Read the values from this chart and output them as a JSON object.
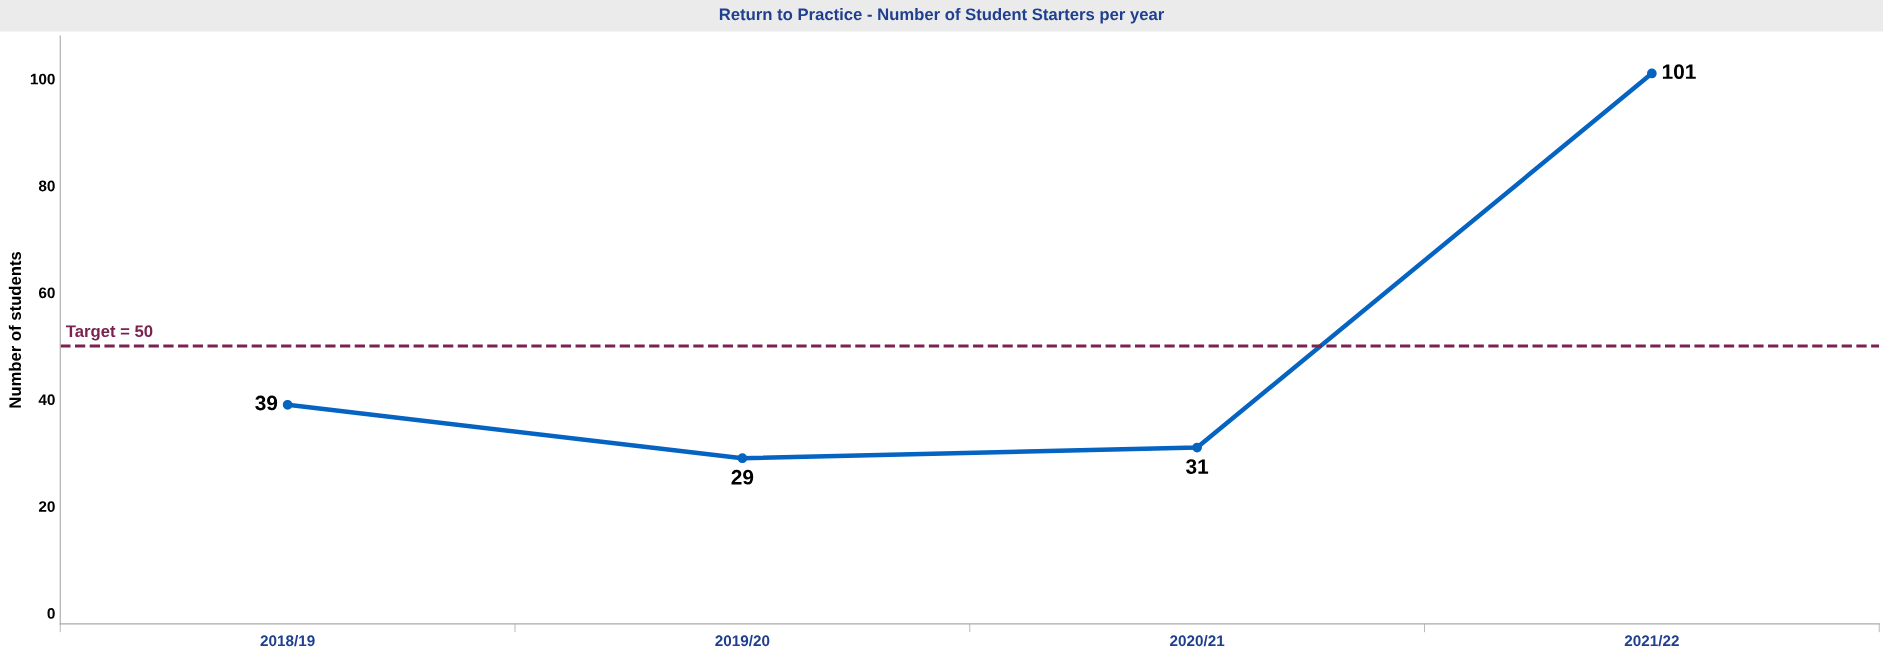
{
  "chart_data": {
    "type": "line",
    "title": "Return to Practice - Number of Student Starters per year",
    "ylabel": "Number of students",
    "categories": [
      "2018/19",
      "2019/20",
      "2020/21",
      "2021/22"
    ],
    "series": [
      {
        "color": "#0563c1",
        "values": [
          39,
          29,
          31,
          101
        ]
      }
    ],
    "ylim": [
      -2,
      108
    ],
    "yticks": [
      0,
      20,
      40,
      60,
      80,
      100
    ],
    "grid": false,
    "marker": "circle",
    "line_style": "solid",
    "data_labels": true,
    "ref_lines": [
      {
        "axis": "y",
        "value": 50,
        "label": "Target = 50",
        "color": "#7b2350",
        "line_style": "dashed"
      }
    ]
  }
}
